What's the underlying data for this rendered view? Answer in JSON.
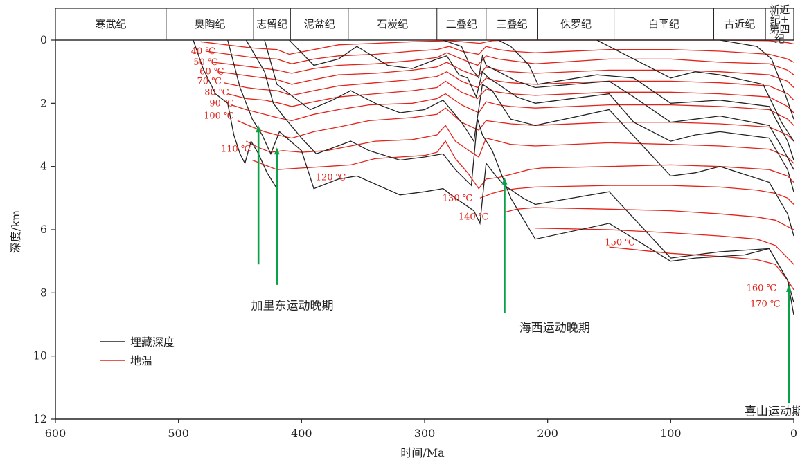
{
  "chart_data": {
    "type": "line",
    "title": "",
    "xlabel": "时间/Ma",
    "ylabel": "深度/km",
    "xlim": [
      600,
      0
    ],
    "ylim": [
      0,
      12
    ],
    "x_ticks": [
      600,
      500,
      400,
      300,
      200,
      100,
      0
    ],
    "y_ticks": [
      0,
      2,
      4,
      6,
      8,
      10,
      12
    ],
    "periods": [
      {
        "name": "寒武纪",
        "start": 600,
        "end": 510
      },
      {
        "name": "奥陶纪",
        "start": 510,
        "end": 439
      },
      {
        "name": "志留纪",
        "start": 439,
        "end": 409
      },
      {
        "name": "泥盆纪",
        "start": 409,
        "end": 362
      },
      {
        "name": "石炭纪",
        "start": 362,
        "end": 290
      },
      {
        "name": "二叠纪",
        "start": 290,
        "end": 250
      },
      {
        "name": "三叠纪",
        "start": 250,
        "end": 208
      },
      {
        "name": "侏罗纪",
        "start": 208,
        "end": 146
      },
      {
        "name": "白垩纪",
        "start": 146,
        "end": 65
      },
      {
        "name": "古近纪",
        "start": 65,
        "end": 23
      },
      {
        "name": "新近纪+第四纪",
        "start": 23,
        "end": 0
      }
    ],
    "legend": [
      {
        "name": "埋藏深度",
        "color": "#222222"
      },
      {
        "name": "地温",
        "color": "#e2231a"
      }
    ],
    "colors": {
      "burial": "#222222",
      "temperature": "#e2231a",
      "event_arrow": "#0aa14b"
    },
    "temperature_labels": [
      {
        "text": "40 ℃",
        "x": 470,
        "y": 0.35
      },
      {
        "text": "50 ℃",
        "x": 468,
        "y": 0.7
      },
      {
        "text": "60 ℃",
        "x": 463,
        "y": 1.0
      },
      {
        "text": "70 ℃",
        "x": 465,
        "y": 1.3
      },
      {
        "text": "80 ℃",
        "x": 459,
        "y": 1.65
      },
      {
        "text": "90 ℃",
        "x": 455,
        "y": 2.0
      },
      {
        "text": "100 ℃",
        "x": 455,
        "y": 2.4
      },
      {
        "text": "110 ℃",
        "x": 441,
        "y": 3.45
      },
      {
        "text": "120 ℃",
        "x": 364,
        "y": 4.35
      },
      {
        "text": "130 ℃",
        "x": 261,
        "y": 5.0
      },
      {
        "text": "140 ℃",
        "x": 248,
        "y": 5.6
      },
      {
        "text": "150 ℃",
        "x": 129,
        "y": 6.4
      },
      {
        "text": "160 ℃",
        "x": 14,
        "y": 7.85
      },
      {
        "text": "170 ℃",
        "x": 11,
        "y": 8.35
      }
    ],
    "events": [
      {
        "label": "加里东运动晚期",
        "arrows": [
          {
            "x": 435,
            "y_from": 7.1,
            "y_to": 2.7
          },
          {
            "x": 420,
            "y_from": 7.75,
            "y_to": 3.4
          }
        ],
        "label_x": 441,
        "label_y": 8.4
      },
      {
        "label": "海西运动晚期",
        "arrows": [
          {
            "x": 235,
            "y_from": 8.65,
            "y_to": 4.35
          }
        ],
        "label_x": 223,
        "label_y": 9.1
      },
      {
        "label": "喜山运动期",
        "arrows": [
          {
            "x": 4,
            "y_from": 11.5,
            "y_to": 7.75
          }
        ],
        "label_x": 40,
        "label_y": 11.75
      }
    ],
    "burial_series": [
      {
        "x": [
          488,
          480,
          470,
          460,
          455,
          450,
          446,
          441,
          435,
          428,
          420
        ],
        "y": [
          0,
          0.9,
          1.7,
          2.0,
          3.0,
          3.6,
          3.9,
          3.2,
          3.6,
          4.2,
          4.7
        ]
      },
      {
        "x": [
          460,
          450,
          440,
          432,
          425,
          418,
          400,
          390,
          370,
          355,
          320,
          300,
          285,
          275,
          260,
          255,
          250,
          242,
          235,
          220,
          210,
          150,
          100,
          80,
          60,
          20,
          5,
          0
        ],
        "y": [
          0,
          1.5,
          2.5,
          3.0,
          3.6,
          2.9,
          3.5,
          4.7,
          4.4,
          4.3,
          4.9,
          4.8,
          4.7,
          5.0,
          5.4,
          5.8,
          3.9,
          4.3,
          4.6,
          5.0,
          5.2,
          4.8,
          6.9,
          6.8,
          6.7,
          6.6,
          7.6,
          8.7
        ]
      },
      {
        "x": [
          445,
          430,
          423,
          415,
          400,
          388,
          360,
          345,
          320,
          300,
          285,
          275,
          262,
          257,
          253,
          245,
          230,
          210,
          150,
          100,
          80,
          40,
          20,
          5,
          0
        ],
        "y": [
          0,
          1.0,
          2.0,
          2.4,
          3.1,
          3.6,
          3.2,
          3.5,
          3.8,
          3.7,
          3.6,
          4.1,
          4.6,
          2.5,
          3.0,
          3.5,
          5.0,
          6.3,
          5.8,
          7.0,
          6.9,
          6.8,
          6.6,
          7.6,
          8.3
        ]
      },
      {
        "x": [
          430,
          420,
          410,
          393,
          375,
          360,
          340,
          320,
          300,
          285,
          270,
          260,
          253,
          245,
          230,
          210,
          150,
          100,
          80,
          60,
          20,
          5,
          0
        ],
        "y": [
          0,
          1.4,
          1.7,
          2.2,
          1.9,
          1.6,
          2.0,
          2.3,
          2.2,
          1.9,
          2.6,
          3.2,
          1.4,
          1.6,
          2.5,
          2.7,
          2.2,
          4.3,
          4.2,
          4.0,
          4.5,
          5.5,
          6.2
        ]
      },
      {
        "x": [
          410,
          390,
          370,
          355,
          330,
          310,
          290,
          282,
          272,
          265,
          258,
          253,
          248,
          240,
          225,
          210,
          150,
          130,
          100,
          80,
          60,
          20,
          5,
          0
        ],
        "y": [
          0,
          0.8,
          0.6,
          0.2,
          0.8,
          0.9,
          0.6,
          0.5,
          1.1,
          1.2,
          1.8,
          1.0,
          1.2,
          1.4,
          1.8,
          2.0,
          1.7,
          2.6,
          3.2,
          3.0,
          2.9,
          3.1,
          4.1,
          4.8
        ]
      },
      {
        "x": [
          285,
          270,
          262,
          256,
          253,
          250,
          240,
          225,
          210,
          150,
          130,
          100,
          80,
          60,
          20,
          8,
          0
        ],
        "y": [
          0,
          0.2,
          0.9,
          1.2,
          0.5,
          0.8,
          1.0,
          1.3,
          1.5,
          1.3,
          1.8,
          2.6,
          2.5,
          2.4,
          2.7,
          3.5,
          4.1
        ]
      },
      {
        "x": [
          240,
          230,
          215,
          208,
          160,
          130,
          100,
          60,
          20,
          5,
          0
        ],
        "y": [
          0,
          0.2,
          0.8,
          1.4,
          1.1,
          1.2,
          2.0,
          1.9,
          2.1,
          3.2,
          3.8
        ]
      },
      {
        "x": [
          160,
          140,
          100,
          80,
          60,
          25,
          10,
          0
        ],
        "y": [
          0,
          0.4,
          1.2,
          1.0,
          1.1,
          1.4,
          2.6,
          3.2
        ]
      },
      {
        "x": [
          60,
          30,
          18,
          8,
          0
        ],
        "y": [
          0,
          0.2,
          0.6,
          1.6,
          2.5
        ]
      }
    ],
    "temperature_series": [
      {
        "name": "40 ℃",
        "x": [
          482,
          440,
          420,
          410,
          390,
          370,
          340,
          310,
          290,
          280,
          270,
          255,
          245,
          230,
          210,
          150,
          100,
          60,
          20,
          5,
          0
        ],
        "y": [
          0.05,
          0.25,
          0.3,
          0.45,
          0.3,
          0.15,
          0.1,
          0.05,
          0.03,
          0.02,
          0.05,
          0.1,
          0.02,
          0.0,
          0.0,
          0.0,
          0.0,
          0.0,
          0.02,
          0.08,
          0.12
        ]
      },
      {
        "name": "50 ℃",
        "x": [
          478,
          440,
          420,
          408,
          390,
          370,
          340,
          310,
          290,
          280,
          270,
          256,
          250,
          240,
          230,
          210,
          150,
          100,
          60,
          20,
          5,
          0
        ],
        "y": [
          0.35,
          0.55,
          0.6,
          0.75,
          0.6,
          0.5,
          0.45,
          0.35,
          0.3,
          0.2,
          0.35,
          0.45,
          0.2,
          0.3,
          0.35,
          0.4,
          0.3,
          0.3,
          0.35,
          0.45,
          0.6,
          0.7
        ]
      },
      {
        "name": "60 ℃",
        "x": [
          472,
          440,
          420,
          408,
          390,
          370,
          340,
          310,
          290,
          282,
          270,
          257,
          250,
          240,
          230,
          210,
          150,
          100,
          60,
          20,
          5,
          0
        ],
        "y": [
          0.7,
          0.85,
          0.95,
          1.05,
          0.9,
          0.8,
          0.75,
          0.65,
          0.55,
          0.4,
          0.6,
          0.8,
          0.5,
          0.6,
          0.65,
          0.75,
          0.6,
          0.6,
          0.7,
          0.75,
          0.95,
          1.1
        ]
      },
      {
        "name": "70 ℃",
        "x": [
          468,
          440,
          420,
          408,
          390,
          370,
          340,
          310,
          290,
          282,
          270,
          257,
          250,
          240,
          230,
          210,
          150,
          100,
          60,
          20,
          5,
          0
        ],
        "y": [
          1.0,
          1.15,
          1.25,
          1.4,
          1.25,
          1.1,
          1.05,
          0.95,
          0.85,
          0.7,
          0.95,
          1.15,
          0.85,
          0.95,
          1.0,
          1.05,
          0.95,
          0.95,
          1.0,
          1.1,
          1.3,
          1.5
        ]
      },
      {
        "name": "80 ℃",
        "x": [
          463,
          445,
          435,
          420,
          408,
          390,
          370,
          340,
          310,
          290,
          282,
          270,
          257,
          250,
          240,
          230,
          210,
          150,
          100,
          60,
          20,
          5,
          0
        ],
        "y": [
          1.35,
          1.5,
          1.55,
          1.6,
          1.75,
          1.6,
          1.45,
          1.35,
          1.25,
          1.15,
          1.0,
          1.3,
          1.5,
          1.2,
          1.3,
          1.35,
          1.4,
          1.3,
          1.3,
          1.35,
          1.45,
          1.7,
          1.9
        ]
      },
      {
        "name": "90 ℃",
        "x": [
          460,
          445,
          430,
          418,
          408,
          390,
          370,
          340,
          310,
          290,
          283,
          270,
          257,
          250,
          240,
          230,
          210,
          150,
          100,
          60,
          20,
          5,
          0
        ],
        "y": [
          1.7,
          1.85,
          1.9,
          2.0,
          2.1,
          1.95,
          1.8,
          1.7,
          1.6,
          1.5,
          1.3,
          1.65,
          1.85,
          1.55,
          1.65,
          1.7,
          1.75,
          1.65,
          1.65,
          1.7,
          1.8,
          2.1,
          2.3
        ]
      },
      {
        "name": "100 ℃",
        "x": [
          457,
          445,
          430,
          420,
          408,
          390,
          370,
          345,
          310,
          290,
          283,
          270,
          256,
          250,
          240,
          230,
          210,
          150,
          100,
          60,
          20,
          5,
          0
        ],
        "y": [
          2.05,
          2.2,
          2.35,
          2.45,
          2.55,
          2.35,
          2.2,
          2.05,
          2.0,
          1.85,
          1.7,
          2.05,
          2.3,
          1.95,
          2.05,
          2.1,
          2.15,
          2.05,
          2.05,
          2.1,
          2.2,
          2.5,
          2.7
        ]
      },
      {
        "name": "110 ℃",
        "x": [
          452,
          440,
          430,
          420,
          408,
          390,
          370,
          345,
          310,
          290,
          283,
          270,
          256,
          250,
          240,
          230,
          210,
          150,
          100,
          60,
          20,
          5,
          0
        ],
        "y": [
          2.55,
          2.75,
          2.9,
          3.0,
          3.1,
          2.9,
          2.75,
          2.55,
          2.45,
          2.35,
          2.15,
          2.6,
          2.85,
          2.55,
          2.6,
          2.65,
          2.7,
          2.6,
          2.6,
          2.65,
          2.75,
          3.0,
          3.2
        ]
      },
      {
        "name": "120 ℃",
        "x": [
          445,
          435,
          425,
          415,
          400,
          380,
          360,
          340,
          310,
          290,
          283,
          275,
          262,
          256,
          250,
          240,
          230,
          210,
          150,
          100,
          60,
          20,
          5,
          0
        ],
        "y": [
          3.2,
          3.4,
          3.55,
          3.5,
          3.55,
          3.5,
          3.35,
          3.2,
          3.15,
          3.0,
          2.7,
          3.2,
          3.55,
          3.7,
          3.1,
          3.2,
          3.3,
          3.35,
          3.25,
          3.3,
          3.35,
          3.45,
          3.7,
          3.9
        ]
      },
      {
        "name": "130 ℃",
        "x": [
          440,
          430,
          420,
          400,
          380,
          360,
          340,
          320,
          300,
          290,
          283,
          275,
          265,
          256,
          250,
          240,
          230,
          215,
          205,
          150,
          100,
          60,
          20,
          5,
          0
        ],
        "y": [
          3.8,
          3.95,
          4.1,
          4.05,
          4.0,
          3.95,
          3.75,
          3.7,
          3.65,
          3.55,
          3.2,
          3.75,
          4.2,
          4.7,
          4.4,
          4.35,
          4.25,
          4.1,
          4.05,
          4.0,
          3.95,
          4.0,
          4.1,
          4.3,
          4.5
        ]
      },
      {
        "name": "140 ℃",
        "x": [
          255,
          245,
          235,
          225,
          210,
          150,
          100,
          60,
          30,
          15,
          5,
          0
        ],
        "y": [
          5.0,
          4.85,
          4.75,
          4.7,
          4.65,
          4.6,
          4.6,
          4.65,
          4.75,
          4.85,
          5.0,
          5.2
        ]
      },
      {
        "name": "150 ℃",
        "x": [
          235,
          225,
          210,
          150,
          100,
          60,
          30,
          15,
          5,
          0
        ],
        "y": [
          5.45,
          5.35,
          5.3,
          5.35,
          5.4,
          5.5,
          5.6,
          5.7,
          5.9,
          6.0
        ]
      },
      {
        "name": "160 ℃",
        "x": [
          210,
          150,
          100,
          60,
          30,
          15,
          5,
          0
        ],
        "y": [
          5.95,
          6.0,
          6.1,
          6.2,
          6.3,
          6.5,
          6.9,
          7.1
        ]
      },
      {
        "name": "170 ℃",
        "x": [
          150,
          100,
          60,
          30,
          15,
          5,
          0
        ],
        "y": [
          6.55,
          6.75,
          6.85,
          6.95,
          7.1,
          7.6,
          7.9
        ]
      }
    ]
  }
}
